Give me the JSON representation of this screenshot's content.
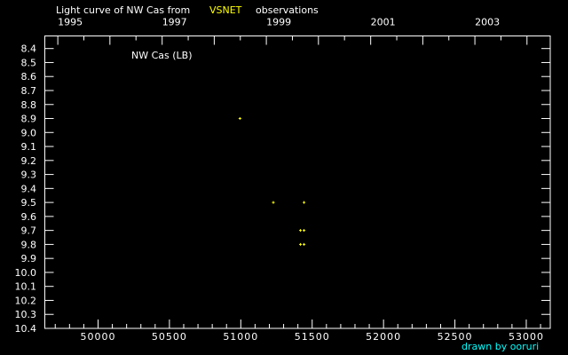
{
  "chart_data": {
    "type": "scatter",
    "title_prefix": "Light curve of NW Cas from",
    "title_source": "VSNET",
    "title_suffix": "observations",
    "legend_label": "NW Cas (LB)",
    "credit": "drawn by ooruri",
    "xlim": [
      49627,
      53168
    ],
    "ylim": [
      8.31,
      10.4
    ],
    "y_inverted": true,
    "x_ticks": [
      50000,
      50500,
      51000,
      51500,
      52000,
      52500,
      53000
    ],
    "x_tick_labels": [
      "50000",
      "50500",
      "51000",
      "51500",
      "52000",
      "52500",
      "53000"
    ],
    "year_ticks": [
      {
        "label": "1995",
        "jd": 49718
      },
      {
        "label": "1997",
        "jd": 50449
      },
      {
        "label": "1999",
        "jd": 51179
      },
      {
        "label": "2001",
        "jd": 51910
      },
      {
        "label": "2003",
        "jd": 52640
      }
    ],
    "year_minor_jd": [
      50083,
      50814,
      51544,
      52275,
      53005
    ],
    "y_ticks": [
      8.4,
      8.5,
      8.6,
      8.7,
      8.8,
      8.9,
      9.0,
      9.1,
      9.2,
      9.3,
      9.4,
      9.5,
      9.6,
      9.7,
      9.8,
      9.9,
      10.0,
      10.1,
      10.2,
      10.3,
      10.4
    ],
    "y_tick_labels": [
      "8.4",
      "8.5",
      "8.6",
      "8.7",
      "8.8",
      "8.9",
      "9.0",
      "9.1",
      "9.2",
      "9.3",
      "9.4",
      "9.5",
      "9.6",
      "9.7",
      "9.8",
      "9.9",
      "10.0",
      "10.1",
      "10.2",
      "10.3",
      "10.4"
    ],
    "points": [
      {
        "jd": 50994,
        "mag": 8.9
      },
      {
        "jd": 51228,
        "mag": 9.5
      },
      {
        "jd": 51443,
        "mag": 9.5
      },
      {
        "jd": 51418,
        "mag": 9.7
      },
      {
        "jd": 51443,
        "mag": 9.7
      },
      {
        "jd": 51418,
        "mag": 9.8
      },
      {
        "jd": 51443,
        "mag": 9.8
      }
    ],
    "colors": {
      "background": "#000000",
      "axes": "#ffffff",
      "points": "#ffff00",
      "source": "#ffff00",
      "credit": "#00ffff"
    }
  }
}
